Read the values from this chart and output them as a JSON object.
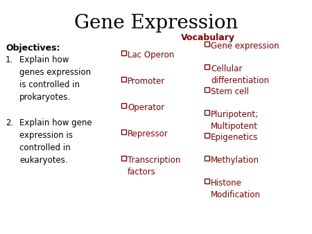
{
  "title": "Gene Expression",
  "title_fontsize": 20,
  "title_color": "#000000",
  "bg_color": "#ffffff",
  "vocab_header": "Vocabulary",
  "vocab_color": "#8B0000",
  "vocab_header_fontsize": 9,
  "objectives_label": "Objectives:",
  "objectives_color": "#000000",
  "objectives_fontsize": 9,
  "obj1_num": "1.",
  "obj1_text": "Explain how\ngenes expression\nis controlled in\nprokaryotes.",
  "obj2_num": "2.",
  "obj2_text": "Explain how gene\nexpression is\ncontrolled in\neukaryotes.",
  "col1_vocab": [
    "Lac Operon",
    "Promoter",
    "Operator",
    "Repressor",
    "Transcription\nfactors"
  ],
  "col2_vocab": [
    "Gene expression",
    "Cellular\ndifferentiation",
    "Stem cell",
    "Pluripotent;\nMultipotent",
    "Epigenetics",
    "Methylation",
    "Histone\nModification"
  ],
  "vocab_fontsize": 8.5,
  "obj_text_fontsize": 8.5,
  "checkbox_color": "#8B0000",
  "text_color": "#8B0000",
  "obj_text_color": "#000000"
}
